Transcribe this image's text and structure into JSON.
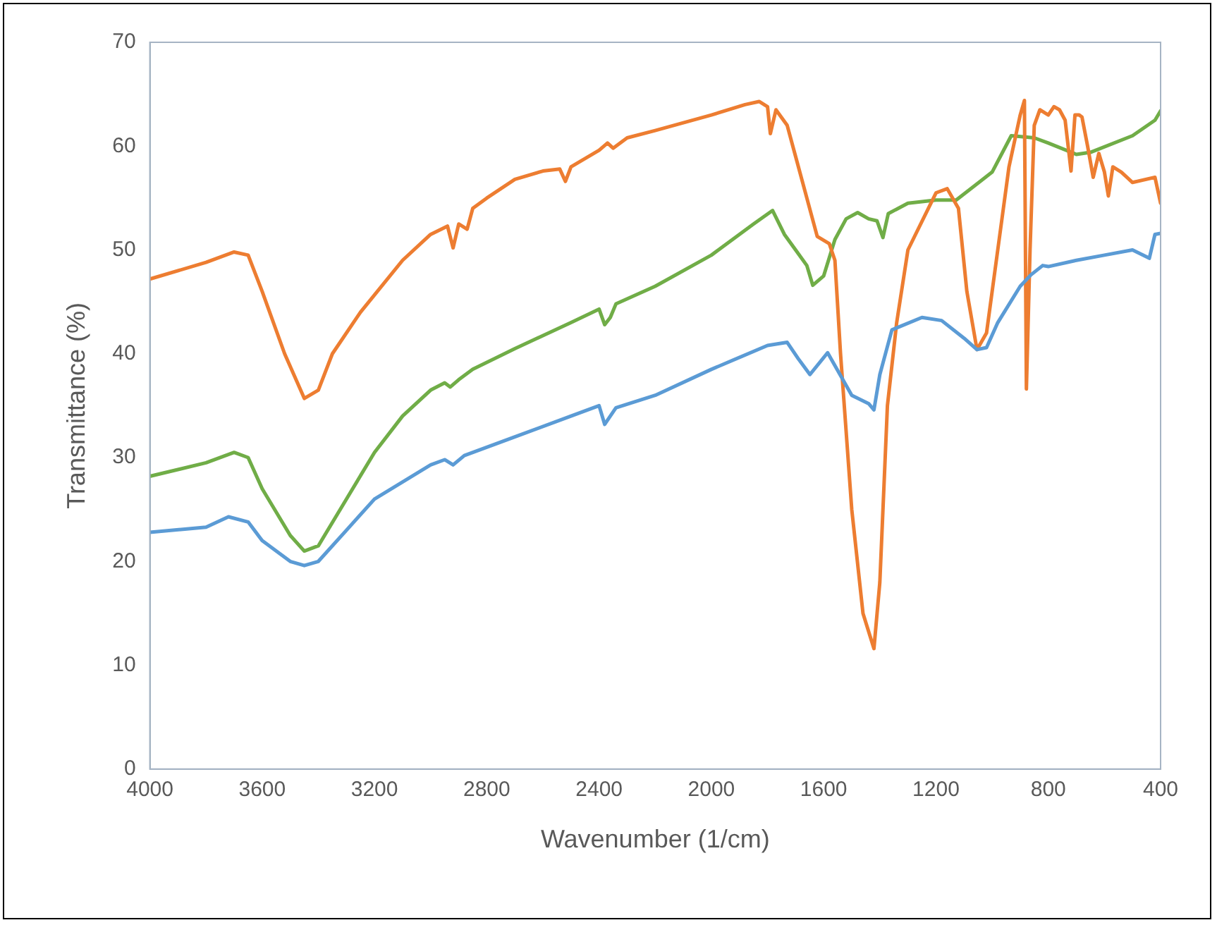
{
  "chart_data": {
    "type": "line",
    "xlabel": "Wavenumber (1/cm)",
    "ylabel": "Transmittance (%)",
    "xlim": [
      4000,
      400
    ],
    "xticks": [
      4000,
      3600,
      3200,
      2800,
      2400,
      2000,
      1600,
      1200,
      800,
      400
    ],
    "ylim": [
      0,
      70
    ],
    "yticks": [
      0,
      10,
      20,
      30,
      40,
      50,
      60,
      70
    ],
    "grid": false,
    "legend": false,
    "marker": "none",
    "line_style": "solid",
    "series": [
      {
        "color": "#5b9bd5",
        "x": [
          4000,
          3800,
          3720,
          3650,
          3600,
          3500,
          3450,
          3400,
          3300,
          3200,
          3000,
          2950,
          2920,
          2880,
          2700,
          2500,
          2400,
          2380,
          2360,
          2340,
          2200,
          2000,
          1800,
          1730,
          1690,
          1649,
          1586,
          1500,
          1440,
          1421,
          1400,
          1357,
          1250,
          1180,
          1100,
          1054,
          1020,
          980,
          900,
          862,
          820,
          800,
          700,
          600,
          500,
          440,
          420,
          400
        ],
        "values": [
          22.8,
          23.3,
          24.3,
          23.8,
          22,
          20,
          19.6,
          20,
          23,
          26,
          29.3,
          29.8,
          29.3,
          30.2,
          32,
          34,
          35,
          33.2,
          34,
          34.8,
          36,
          38.5,
          40.8,
          41.1,
          39.5,
          38,
          40.1,
          36,
          35.2,
          34.6,
          38,
          42.3,
          43.5,
          43.2,
          41.5,
          40.4,
          40.6,
          43,
          46.5,
          47.6,
          48.5,
          48.4,
          49,
          49.5,
          50,
          49.2,
          51.5,
          51.6
        ]
      },
      {
        "color": "#ed7d31",
        "x": [
          4000,
          3800,
          3700,
          3650,
          3600,
          3520,
          3450,
          3400,
          3350,
          3250,
          3100,
          3000,
          2940,
          2920,
          2900,
          2870,
          2850,
          2800,
          2700,
          2600,
          2540,
          2520,
          2500,
          2400,
          2370,
          2350,
          2300,
          2200,
          2000,
          1880,
          1830,
          1800,
          1790,
          1770,
          1730,
          1700,
          1660,
          1623,
          1580,
          1560,
          1540,
          1500,
          1460,
          1421,
          1400,
          1373,
          1340,
          1300,
          1200,
          1160,
          1120,
          1090,
          1054,
          1020,
          980,
          940,
          900,
          885,
          878,
          865,
          850,
          830,
          800,
          780,
          760,
          740,
          719,
          705,
          690,
          680,
          660,
          640,
          620,
          600,
          586,
          570,
          540,
          500,
          420,
          400
        ],
        "values": [
          47.2,
          48.8,
          49.8,
          49.5,
          46,
          40,
          35.7,
          36.5,
          40,
          44,
          49,
          51.5,
          52.3,
          50.2,
          52.5,
          52,
          54,
          55,
          56.8,
          57.6,
          57.8,
          56.6,
          58,
          59.6,
          60.3,
          59.8,
          60.8,
          61.5,
          63,
          64,
          64.3,
          63.8,
          61.2,
          63.5,
          62,
          59,
          55,
          51.3,
          50.6,
          49,
          40,
          25,
          15,
          11.6,
          18,
          35,
          43,
          50,
          55.5,
          55.9,
          54,
          46,
          40.4,
          42,
          50,
          58,
          63,
          64.4,
          36.6,
          50,
          62,
          63.5,
          63,
          63.8,
          63.5,
          62.5,
          57.6,
          63,
          63,
          62.8,
          60,
          57,
          59.3,
          57.5,
          55.2,
          58,
          57.5,
          56.5,
          57,
          54.5
        ]
      },
      {
        "color": "#70ad47",
        "x": [
          4000,
          3800,
          3700,
          3650,
          3600,
          3500,
          3450,
          3400,
          3300,
          3200,
          3100,
          3000,
          2950,
          2930,
          2900,
          2850,
          2700,
          2500,
          2400,
          2380,
          2360,
          2340,
          2200,
          2000,
          1850,
          1782,
          1740,
          1700,
          1660,
          1639,
          1600,
          1560,
          1520,
          1479,
          1440,
          1410,
          1389,
          1370,
          1300,
          1200,
          1128,
          1000,
          932,
          850,
          800,
          700,
          650,
          500,
          420,
          400
        ],
        "values": [
          28.2,
          29.5,
          30.5,
          30,
          27,
          22.5,
          21,
          21.5,
          26,
          30.5,
          34,
          36.5,
          37.2,
          36.8,
          37.5,
          38.5,
          40.5,
          43,
          44.3,
          42.8,
          43.5,
          44.8,
          46.5,
          49.5,
          52.5,
          53.8,
          51.5,
          50,
          48.5,
          46.6,
          47.5,
          51,
          53,
          53.6,
          53,
          52.8,
          51.2,
          53.5,
          54.5,
          54.8,
          54.8,
          57.5,
          61,
          60.8,
          60.3,
          59.2,
          59.4,
          61,
          62.5,
          63.4
        ]
      }
    ]
  }
}
